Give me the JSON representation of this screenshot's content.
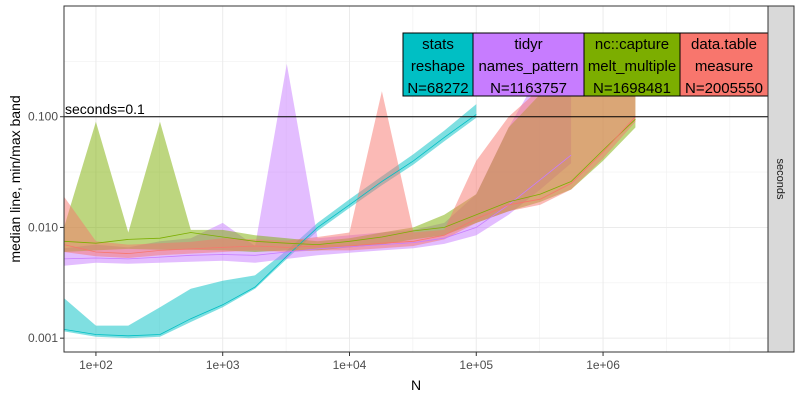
{
  "chart_data": {
    "type": "line",
    "title": "",
    "xlabel": "N",
    "ylabel": "median line, min/max band",
    "x_scale": "log10",
    "y_scale": "log10",
    "xlim": [
      56,
      20000000
    ],
    "ylim": [
      0.00075,
      1.0
    ],
    "x_ticks": [
      100,
      1000,
      10000,
      100000,
      1000000
    ],
    "x_tick_labels": [
      "1e+02",
      "1e+03",
      "1e+04",
      "1e+05",
      "1e+06"
    ],
    "y_ticks": [
      0.001,
      0.01,
      0.1
    ],
    "y_tick_labels": [
      "0.001",
      "0.010",
      "0.100"
    ],
    "grid": true,
    "facet_label": "seconds",
    "reference_line": {
      "y": 0.1,
      "label": "seconds=0.1"
    },
    "series": [
      {
        "name": "stats reshape",
        "color": "#00BFC4",
        "x": [
          56,
          100,
          180,
          320,
          560,
          1000,
          1800,
          3200,
          5600,
          10000,
          18000,
          32000,
          56000,
          100000
        ],
        "median": [
          0.0012,
          0.00108,
          0.00105,
          0.00108,
          0.0015,
          0.002,
          0.0029,
          0.0055,
          0.01,
          0.016,
          0.026,
          0.04,
          0.065,
          0.105
        ],
        "min": [
          0.00115,
          0.00103,
          0.001,
          0.00103,
          0.0014,
          0.0019,
          0.0028,
          0.0052,
          0.0093,
          0.015,
          0.024,
          0.037,
          0.06,
          0.098
        ],
        "max": [
          0.0023,
          0.0013,
          0.0013,
          0.0019,
          0.0028,
          0.0033,
          0.0037,
          0.0062,
          0.011,
          0.018,
          0.029,
          0.046,
          0.075,
          0.13
        ]
      },
      {
        "name": "tidyr names_pattern",
        "color": "#C77CFF",
        "x": [
          56,
          100,
          180,
          320,
          560,
          1000,
          1800,
          3200,
          5600,
          10000,
          18000,
          32000,
          56000,
          100000,
          180000,
          320000,
          560000
        ],
        "median": [
          0.0052,
          0.0053,
          0.0052,
          0.0054,
          0.0056,
          0.0057,
          0.0056,
          0.006,
          0.0064,
          0.0067,
          0.007,
          0.0073,
          0.008,
          0.01,
          0.016,
          0.027,
          0.045
        ],
        "min": [
          0.0045,
          0.0048,
          0.0047,
          0.0048,
          0.0049,
          0.005,
          0.0048,
          0.0052,
          0.0056,
          0.0059,
          0.0062,
          0.0065,
          0.0071,
          0.0085,
          0.013,
          0.022,
          0.038
        ],
        "max": [
          0.0065,
          0.007,
          0.0066,
          0.0075,
          0.008,
          0.011,
          0.0068,
          0.3,
          0.008,
          0.0085,
          0.009,
          0.0095,
          0.011,
          0.02,
          0.08,
          0.25,
          0.45
        ]
      },
      {
        "name": "nc::capture melt_multiple",
        "color": "#7CAE00",
        "x": [
          56,
          100,
          180,
          320,
          560,
          1000,
          1800,
          3200,
          5600,
          10000,
          18000,
          32000,
          56000,
          100000,
          180000,
          320000,
          560000,
          1000000,
          1800000
        ],
        "median": [
          0.0075,
          0.0072,
          0.0078,
          0.008,
          0.009,
          0.0082,
          0.0075,
          0.0072,
          0.007,
          0.0075,
          0.0082,
          0.0093,
          0.01,
          0.013,
          0.017,
          0.02,
          0.026,
          0.05,
          0.095
        ],
        "min": [
          0.006,
          0.0062,
          0.0064,
          0.0063,
          0.0063,
          0.0062,
          0.006,
          0.0062,
          0.0062,
          0.0066,
          0.007,
          0.0078,
          0.0085,
          0.011,
          0.014,
          0.017,
          0.022,
          0.04,
          0.08
        ],
        "max": [
          0.01,
          0.09,
          0.009,
          0.09,
          0.0095,
          0.0095,
          0.0085,
          0.008,
          0.0075,
          0.008,
          0.009,
          0.01,
          0.013,
          0.02,
          0.08,
          0.16,
          0.26,
          0.18,
          0.3
        ]
      },
      {
        "name": "data.table measure",
        "color": "#F8766D",
        "x": [
          56,
          100,
          180,
          320,
          560,
          1000,
          1800,
          3200,
          5600,
          10000,
          18000,
          32000,
          56000,
          100000,
          180000,
          320000,
          560000,
          1000000,
          1800000
        ],
        "median": [
          0.007,
          0.006,
          0.0058,
          0.0062,
          0.0064,
          0.0066,
          0.0068,
          0.0066,
          0.0068,
          0.0068,
          0.0072,
          0.0075,
          0.0085,
          0.012,
          0.016,
          0.018,
          0.025,
          0.048,
          0.1
        ],
        "min": [
          0.006,
          0.0055,
          0.0053,
          0.0056,
          0.0058,
          0.006,
          0.0062,
          0.006,
          0.0062,
          0.0062,
          0.0065,
          0.0068,
          0.0078,
          0.011,
          0.014,
          0.016,
          0.022,
          0.042,
          0.09
        ],
        "max": [
          0.019,
          0.0075,
          0.007,
          0.0072,
          0.0074,
          0.008,
          0.0078,
          0.0076,
          0.0082,
          0.009,
          0.17,
          0.009,
          0.0095,
          0.04,
          0.1,
          0.18,
          0.3,
          0.38,
          0.42
        ]
      }
    ],
    "legend_boxes": [
      {
        "line1": "stats",
        "line2": "reshape",
        "line3": "N=68272",
        "color": "#00BFC4"
      },
      {
        "line1": "tidyr",
        "line2": "names_pattern",
        "line3": "N=1163757",
        "color": "#C77CFF"
      },
      {
        "line1": "nc::capture",
        "line2": "melt_multiple",
        "line3": "N=1698481",
        "color": "#7CAE00"
      },
      {
        "line1": "data.table",
        "line2": "measure",
        "line3": "N=2005550",
        "color": "#F8766D"
      }
    ]
  }
}
